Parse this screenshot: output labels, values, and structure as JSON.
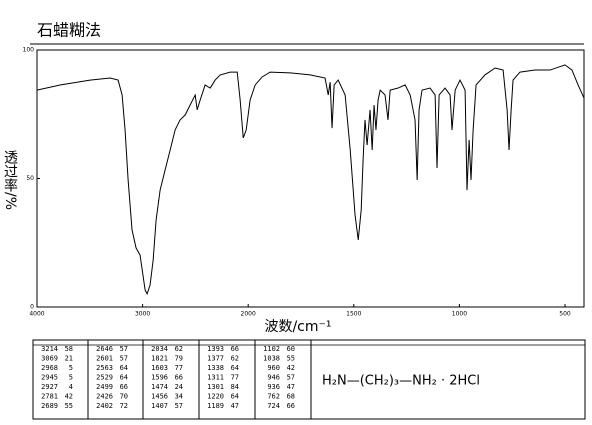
{
  "chart_data": {
    "type": "line",
    "title": "石蜡糊法",
    "xlabel": "波数/cm⁻¹",
    "ylabel": "透过率/%",
    "color": "#000000",
    "xlim": [
      4000,
      410
    ],
    "xticks": [
      4000,
      3000,
      2000,
      1500,
      1000,
      500
    ],
    "ylim": [
      0,
      100
    ],
    "yticks": [
      0,
      50,
      100
    ],
    "x": [
      4000,
      3782,
      3498,
      3308,
      3232,
      3194,
      3166,
      3137,
      3100,
      3062,
      3024,
      2976,
      2957,
      2929,
      2900,
      2872,
      2834,
      2787,
      2739,
      2692,
      2645,
      2597,
      2550,
      2502,
      2483,
      2455,
      2408,
      2360,
      2313,
      2265,
      2171,
      2104,
      2076,
      2047,
      2019,
      1991,
      1967,
      1934,
      1896,
      1801,
      1707,
      1636,
      1621,
      1612,
      1603,
      1593,
      1574,
      1541,
      1517,
      1494,
      1479,
      1465,
      1456,
      1447,
      1437,
      1423,
      1413,
      1404,
      1395,
      1385,
      1375,
      1352,
      1338,
      1328,
      1290,
      1257,
      1233,
      1210,
      1200,
      1191,
      1177,
      1139,
      1115,
      1106,
      1096,
      1068,
      1044,
      1035,
      1020,
      997,
      973,
      964,
      954,
      945,
      935,
      921,
      879,
      831,
      793,
      774,
      765,
      755,
      746,
      713,
      642,
      571,
      500,
      467,
      438,
      410
    ],
    "values": [
      84.4,
      86.4,
      88.3,
      89.1,
      88.3,
      82.5,
      68.9,
      49.4,
      30.0,
      23.0,
      20.2,
      6.6,
      5.1,
      8.6,
      18.3,
      33.9,
      45.5,
      53.3,
      61.1,
      68.9,
      72.8,
      74.7,
      78.6,
      82.5,
      76.7,
      80.5,
      86.4,
      85.2,
      88.3,
      90.3,
      91.4,
      91.4,
      80.5,
      65.8,
      68.9,
      80.5,
      86.4,
      89.5,
      91.4,
      91.1,
      90.3,
      89.1,
      82.5,
      87.5,
      69.6,
      86.4,
      88.3,
      82.5,
      61.1,
      35.8,
      26.1,
      37.7,
      57.2,
      72.8,
      63.0,
      76.7,
      61.1,
      78.6,
      68.9,
      80.5,
      84.4,
      82.5,
      72.8,
      84.4,
      85.2,
      86.4,
      82.5,
      72.8,
      49.4,
      76.7,
      84.4,
      85.2,
      82.5,
      54.1,
      82.5,
      85.2,
      82.5,
      68.9,
      84.4,
      88.3,
      84.4,
      45.5,
      65.0,
      49.4,
      68.9,
      86.4,
      90.3,
      93.0,
      92.2,
      76.7,
      61.1,
      76.7,
      88.3,
      91.4,
      92.2,
      92.2,
      94.2,
      92.2,
      86.4,
      81.3
    ],
    "peaks": [
      [
        [
          3214,
          58
        ],
        [
          3069,
          21
        ],
        [
          2968,
          5
        ],
        [
          2945,
          5
        ],
        [
          2927,
          4
        ],
        [
          2781,
          42
        ],
        [
          2689,
          55
        ]
      ],
      [
        [
          2646,
          57
        ],
        [
          2601,
          57
        ],
        [
          2563,
          64
        ],
        [
          2529,
          64
        ],
        [
          2499,
          66
        ],
        [
          2426,
          70
        ],
        [
          2402,
          72
        ]
      ],
      [
        [
          2034,
          62
        ],
        [
          1821,
          79
        ],
        [
          1603,
          77
        ],
        [
          1596,
          66
        ],
        [
          1474,
          24
        ],
        [
          1456,
          34
        ],
        [
          1407,
          57
        ]
      ],
      [
        [
          1393,
          66
        ],
        [
          1377,
          62
        ],
        [
          1338,
          64
        ],
        [
          1311,
          77
        ],
        [
          1301,
          84
        ],
        [
          1220,
          64
        ],
        [
          1189,
          47
        ]
      ],
      [
        [
          1102,
          60
        ],
        [
          1038,
          55
        ],
        [
          960,
          42
        ],
        [
          946,
          57
        ],
        [
          936,
          47
        ],
        [
          762,
          68
        ],
        [
          724,
          66
        ]
      ]
    ],
    "formula": "H₂N—(CH₂)₃—NH₂ · 2HCl"
  }
}
